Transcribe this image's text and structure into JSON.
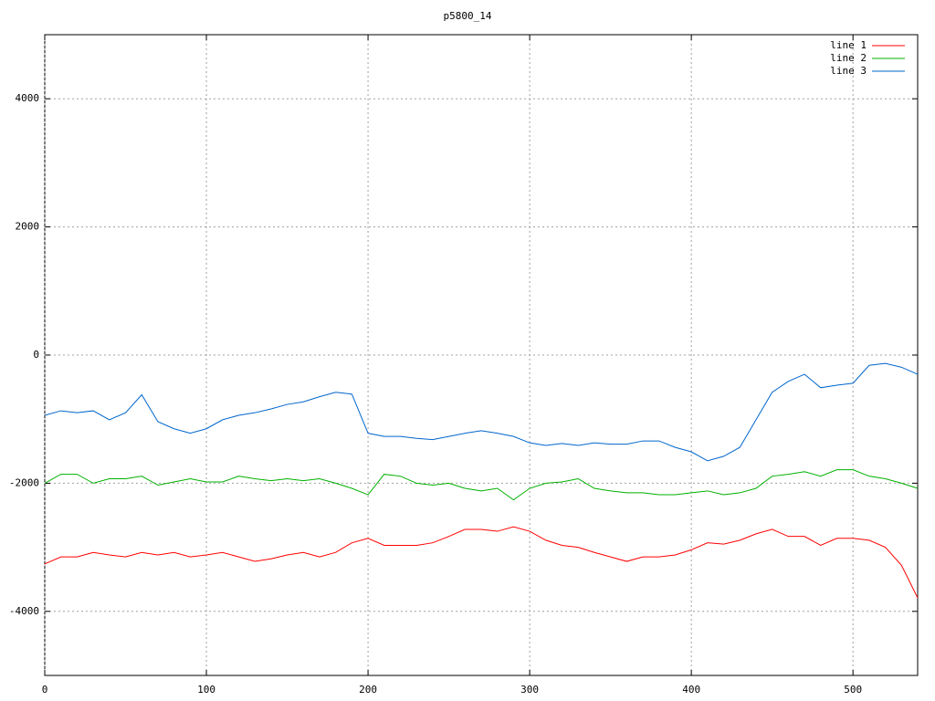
{
  "chart_data": {
    "type": "line",
    "title": "p5800_14",
    "x": [
      0,
      10,
      20,
      30,
      40,
      50,
      60,
      70,
      80,
      90,
      100,
      110,
      120,
      130,
      140,
      150,
      160,
      170,
      180,
      190,
      200,
      210,
      220,
      230,
      240,
      250,
      260,
      270,
      280,
      290,
      300,
      310,
      320,
      330,
      340,
      350,
      360,
      370,
      380,
      390,
      400,
      410,
      420,
      430,
      440,
      450,
      460,
      470,
      480,
      490,
      500,
      510,
      520,
      530,
      540
    ],
    "series": [
      {
        "name": "line 1",
        "color": "#ff0000",
        "values": [
          -3260,
          -3150,
          -3150,
          -3080,
          -3120,
          -3150,
          -3080,
          -3120,
          -3080,
          -3150,
          -3120,
          -3080,
          -3150,
          -3220,
          -3180,
          -3120,
          -3080,
          -3150,
          -3080,
          -2930,
          -2860,
          -2970,
          -2970,
          -2970,
          -2930,
          -2830,
          -2720,
          -2720,
          -2750,
          -2680,
          -2750,
          -2890,
          -2970,
          -3000,
          -3080,
          -3150,
          -3220,
          -3150,
          -3150,
          -3120,
          -3040,
          -2930,
          -2950,
          -2890,
          -2790,
          -2720,
          -2830,
          -2830,
          -2970,
          -2860,
          -2860,
          -2890,
          -3000,
          -3280,
          -3790
        ]
      },
      {
        "name": "line 2",
        "color": "#00b000",
        "values": [
          -2000,
          -1860,
          -1860,
          -2000,
          -1930,
          -1930,
          -1890,
          -2030,
          -1980,
          -1930,
          -1980,
          -1980,
          -1890,
          -1930,
          -1960,
          -1930,
          -1960,
          -1930,
          -2000,
          -2080,
          -2180,
          -1860,
          -1890,
          -2000,
          -2030,
          -2000,
          -2080,
          -2120,
          -2080,
          -2260,
          -2080,
          -2000,
          -1980,
          -1930,
          -2080,
          -2120,
          -2150,
          -2150,
          -2180,
          -2180,
          -2150,
          -2120,
          -2180,
          -2150,
          -2080,
          -1890,
          -1860,
          -1820,
          -1890,
          -1790,
          -1790,
          -1890,
          -1930,
          -2000,
          -2080
        ]
      },
      {
        "name": "line 3",
        "color": "#0066cc",
        "values": [
          -940,
          -870,
          -900,
          -870,
          -1010,
          -900,
          -620,
          -1040,
          -1150,
          -1220,
          -1150,
          -1010,
          -940,
          -900,
          -840,
          -770,
          -730,
          -650,
          -580,
          -610,
          -1220,
          -1270,
          -1270,
          -1300,
          -1320,
          -1270,
          -1220,
          -1180,
          -1220,
          -1270,
          -1370,
          -1410,
          -1380,
          -1410,
          -1370,
          -1390,
          -1390,
          -1340,
          -1340,
          -1440,
          -1510,
          -1650,
          -1580,
          -1440,
          -1010,
          -580,
          -410,
          -300,
          -510,
          -470,
          -440,
          -160,
          -130,
          -190,
          -300
        ]
      }
    ],
    "xlim": [
      0,
      540
    ],
    "xticks": [
      0,
      100,
      200,
      300,
      400,
      500
    ],
    "ylim": [
      -5000,
      5000
    ],
    "yticks": [
      -4000,
      -2000,
      0,
      2000,
      4000
    ],
    "grid": true,
    "legend": "top-right"
  }
}
